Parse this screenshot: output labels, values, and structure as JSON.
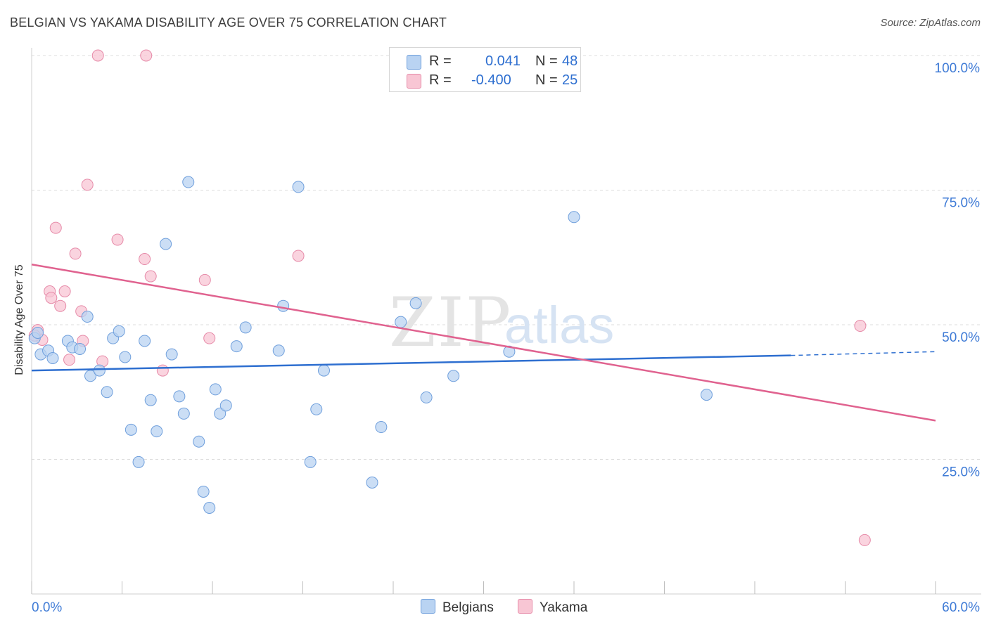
{
  "title": "BELGIAN VS YAKAMA DISABILITY AGE OVER 75 CORRELATION CHART",
  "source": "Source: ZipAtlas.com",
  "watermark": {
    "zip": "ZIP",
    "atlas": "atlas"
  },
  "legend": {
    "rows": [
      {
        "r_label": "R =",
        "r_value": "0.041",
        "n_label": "N =",
        "n_value": "48"
      },
      {
        "r_label": "R =",
        "r_value": "-0.400",
        "n_label": "N =",
        "n_value": "25"
      }
    ]
  },
  "bottom_legend": [
    "Belgians",
    "Yakama"
  ],
  "colors": {
    "belgians_fill": "#b9d3f2",
    "belgians_stroke": "#6f9fdc",
    "belgians_line": "#2e6fd0",
    "yakama_fill": "#f8c6d4",
    "yakama_stroke": "#e68aa8",
    "yakama_line": "#e0628f",
    "tick_label": "#3f7bd6",
    "grid": "#dcdcdc"
  },
  "chart_data": {
    "type": "scatter",
    "title": "BELGIAN VS YAKAMA DISABILITY AGE OVER 75 CORRELATION CHART",
    "xlabel": "",
    "ylabel": "Disability Age Over 75",
    "xlim": [
      0,
      60
    ],
    "ylim": [
      0,
      100
    ],
    "x_tick_labels": [
      "0.0%",
      "60.0%"
    ],
    "y_ticks": [
      25,
      50,
      75,
      100
    ],
    "y_tick_labels": [
      "25.0%",
      "50.0%",
      "75.0%",
      "100.0%"
    ],
    "grid": true,
    "series": [
      {
        "name": "Belgians",
        "r": 0.041,
        "n": 48,
        "points": [
          [
            0.2,
            47.5
          ],
          [
            0.6,
            44.5
          ],
          [
            1.1,
            45.2
          ],
          [
            1.4,
            43.8
          ],
          [
            2.4,
            47.0
          ],
          [
            2.7,
            45.8
          ],
          [
            3.2,
            45.5
          ],
          [
            3.7,
            51.5
          ],
          [
            3.9,
            40.5
          ],
          [
            4.5,
            41.5
          ],
          [
            5.0,
            37.5
          ],
          [
            5.4,
            47.5
          ],
          [
            5.8,
            48.8
          ],
          [
            6.2,
            44.0
          ],
          [
            6.6,
            30.5
          ],
          [
            7.1,
            24.5
          ],
          [
            7.5,
            47.0
          ],
          [
            7.9,
            36.0
          ],
          [
            8.3,
            30.2
          ],
          [
            8.9,
            65.0
          ],
          [
            9.3,
            44.5
          ],
          [
            9.8,
            36.7
          ],
          [
            10.1,
            33.5
          ],
          [
            10.4,
            76.5
          ],
          [
            11.1,
            28.3
          ],
          [
            11.4,
            19.0
          ],
          [
            11.8,
            16.0
          ],
          [
            12.2,
            38.0
          ],
          [
            12.5,
            33.5
          ],
          [
            12.9,
            35.0
          ],
          [
            13.6,
            46.0
          ],
          [
            14.2,
            49.5
          ],
          [
            16.4,
            45.2
          ],
          [
            16.7,
            53.5
          ],
          [
            17.7,
            75.6
          ],
          [
            18.5,
            24.5
          ],
          [
            18.9,
            34.3
          ],
          [
            19.4,
            41.5
          ],
          [
            22.6,
            20.7
          ],
          [
            23.2,
            31.0
          ],
          [
            24.5,
            50.5
          ],
          [
            25.5,
            54.0
          ],
          [
            26.2,
            36.5
          ],
          [
            28.0,
            40.5
          ],
          [
            31.7,
            45.0
          ],
          [
            36.0,
            70.0
          ],
          [
            44.8,
            37.0
          ],
          [
            0.4,
            48.5
          ]
        ],
        "trend": {
          "x": [
            0,
            50.4
          ],
          "y": [
            41.5,
            44.3
          ],
          "dashed_to_x": 60,
          "dashed_to_y": 45.0
        }
      },
      {
        "name": "Yakama",
        "r": -0.4,
        "n": 25,
        "points": [
          [
            0.4,
            49.0
          ],
          [
            0.7,
            47.2
          ],
          [
            1.2,
            56.2
          ],
          [
            1.3,
            55.0
          ],
          [
            1.6,
            68.0
          ],
          [
            1.9,
            53.5
          ],
          [
            2.2,
            56.2
          ],
          [
            2.5,
            43.5
          ],
          [
            2.9,
            63.2
          ],
          [
            3.3,
            52.5
          ],
          [
            3.4,
            47.0
          ],
          [
            3.7,
            76.0
          ],
          [
            4.4,
            100.0
          ],
          [
            4.7,
            43.2
          ],
          [
            5.7,
            65.8
          ],
          [
            7.5,
            62.2
          ],
          [
            7.6,
            100.0
          ],
          [
            7.9,
            59.0
          ],
          [
            8.7,
            41.5
          ],
          [
            11.5,
            58.3
          ],
          [
            11.8,
            47.5
          ],
          [
            17.7,
            62.8
          ],
          [
            55.0,
            49.8
          ],
          [
            55.3,
            10.0
          ],
          [
            0.2,
            48.0
          ]
        ],
        "trend": {
          "x": [
            0,
            60
          ],
          "y": [
            61.2,
            32.2
          ]
        }
      }
    ]
  }
}
